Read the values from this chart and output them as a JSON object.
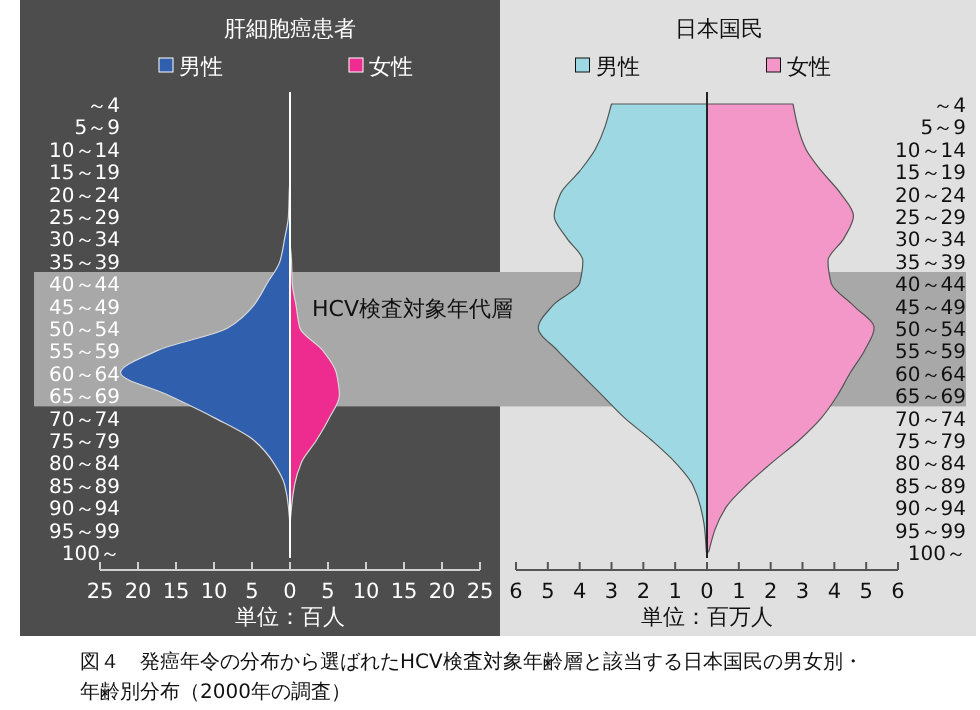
{
  "chart_data": [
    {
      "type": "area",
      "orientation": "horizontal",
      "legend": "top",
      "title": "肝細胞癌患者",
      "xlabel": "単位：百人",
      "categories": [
        "～4",
        "5～9",
        "10～14",
        "15～19",
        "20～24",
        "25～29",
        "30～34",
        "35～39",
        "40～44",
        "45～49",
        "50～54",
        "55～59",
        "60～64",
        "65～69",
        "70～74",
        "75～79",
        "80～84",
        "85～89",
        "90～94",
        "95～99",
        "100～"
      ],
      "series": [
        {
          "name": "男性",
          "color": "#3060ad",
          "values": [
            0,
            0,
            0,
            0,
            -0.1,
            -0.2,
            -0.7,
            -1.3,
            -3,
            -4.8,
            -8.2,
            -17.4,
            -22.3,
            -16,
            -10,
            -4.8,
            -2.2,
            -0.7,
            -0.2,
            0,
            0
          ]
        },
        {
          "name": "女性",
          "color": "#ee2b8f",
          "values": [
            0,
            0,
            0,
            0,
            0,
            0,
            0,
            0.2,
            0.3,
            0.8,
            1.3,
            4.3,
            6.1,
            6.5,
            5.2,
            3.5,
            1.5,
            0.6,
            0.2,
            0,
            0
          ]
        }
      ],
      "xlim": [
        -25,
        25
      ],
      "xticks": [
        {
          "value": -25,
          "label": "25"
        },
        {
          "value": -20,
          "label": "20"
        },
        {
          "value": -15,
          "label": "15"
        },
        {
          "value": -10,
          "label": "10"
        },
        {
          "value": -5,
          "label": "5"
        },
        0,
        5,
        10,
        15,
        20,
        25
      ],
      "bands": [
        {
          "axis": "y",
          "from": "40～44",
          "to": "65～69",
          "label": "HCV検査対象年代層",
          "color": "#a8a8a8"
        }
      ],
      "annotations": [
        "図４　発癌年令の分布から選ばれたHCV検査対象年齢層と該当する日本国民の男女別・",
        "年齢別分布（2000年の調査）"
      ]
    },
    {
      "type": "area",
      "orientation": "horizontal",
      "legend": "top",
      "title": "日本国民",
      "xlabel": "単位：百万人",
      "categories": [
        "～4",
        "5～9",
        "10～14",
        "15～19",
        "20～24",
        "25～29",
        "30～34",
        "35～39",
        "40～44",
        "45～49",
        "50～54",
        "55～59",
        "60～64",
        "65～69",
        "70～74",
        "75～79",
        "80～84",
        "85～89",
        "90～94",
        "95～99",
        "100～"
      ],
      "series": [
        {
          "name": "男性",
          "color": "#9ed9e3",
          "values": [
            -3.0,
            -3.2,
            -3.5,
            -4.0,
            -4.6,
            -4.8,
            -4.4,
            -3.9,
            -4.0,
            -4.85,
            -5.3,
            -4.7,
            -4.0,
            -3.3,
            -2.6,
            -1.75,
            -1.0,
            -0.45,
            -0.2,
            -0.07,
            -0.02
          ]
        },
        {
          "name": "女性",
          "color": "#f397c9",
          "values": [
            2.7,
            2.85,
            3.1,
            3.6,
            4.2,
            4.6,
            4.3,
            3.8,
            3.9,
            4.6,
            5.25,
            4.95,
            4.5,
            4.1,
            3.6,
            2.9,
            2.05,
            1.25,
            0.6,
            0.25,
            0.05
          ]
        }
      ],
      "xlim": [
        -6,
        6
      ],
      "xticks": [
        {
          "value": -6,
          "label": "6"
        },
        {
          "value": -5,
          "label": "5"
        },
        {
          "value": -4,
          "label": "4"
        },
        {
          "value": -3,
          "label": "3"
        },
        {
          "value": -2,
          "label": "2"
        },
        {
          "value": -1,
          "label": "1"
        },
        0,
        1,
        2,
        3,
        4,
        5,
        6
      ],
      "bands": [
        {
          "axis": "y",
          "from": "40～44",
          "to": "65～69",
          "color": "#a8a8a8"
        }
      ]
    }
  ]
}
